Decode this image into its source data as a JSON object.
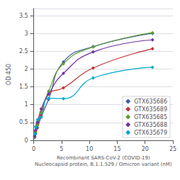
{
  "chart_data": {
    "type": "line",
    "xlabel": "Recombinant SARS-CoV-2 (COVID-19)\nNucleocapsid protein, B.1.1.529 / Omicron variant (nM)",
    "ylabel": "OD 450",
    "xlim": [
      0,
      25
    ],
    "xticks": [
      0,
      5,
      10,
      15,
      20,
      25
    ],
    "ylim": [
      0,
      3.7
    ],
    "yticks": [
      0,
      0.5,
      1,
      1.5,
      2,
      2.5,
      3,
      3.5
    ],
    "grid": true,
    "legend": "lower right",
    "marker": "diamond",
    "x": [
      0.17,
      0.33,
      0.67,
      1.33,
      2.67,
      5.33,
      10.67,
      21.33
    ],
    "series": [
      {
        "name": "GTX635686",
        "color": "#3a5ba0",
        "values": [
          0.08,
          0.18,
          0.35,
          0.65,
          1.15,
          2.2,
          2.63,
          3.0
        ]
      },
      {
        "name": "GTX635689",
        "color": "#bf3030",
        "values": [
          0.1,
          0.25,
          0.45,
          0.7,
          1.3,
          1.47,
          2.03,
          2.57
        ]
      },
      {
        "name": "GTX635685",
        "color": "#5a9e30",
        "values": [
          0.1,
          0.22,
          0.42,
          0.78,
          1.38,
          2.15,
          2.62,
          3.02
        ]
      },
      {
        "name": "GTX635688",
        "color": "#7030a0",
        "values": [
          0.12,
          0.28,
          0.5,
          0.88,
          1.3,
          1.88,
          2.48,
          2.82
        ]
      },
      {
        "name": "GTX635679",
        "color": "#00aacc",
        "values": [
          0.18,
          0.38,
          0.58,
          0.65,
          1.18,
          1.17,
          1.75,
          2.05
        ]
      }
    ]
  }
}
